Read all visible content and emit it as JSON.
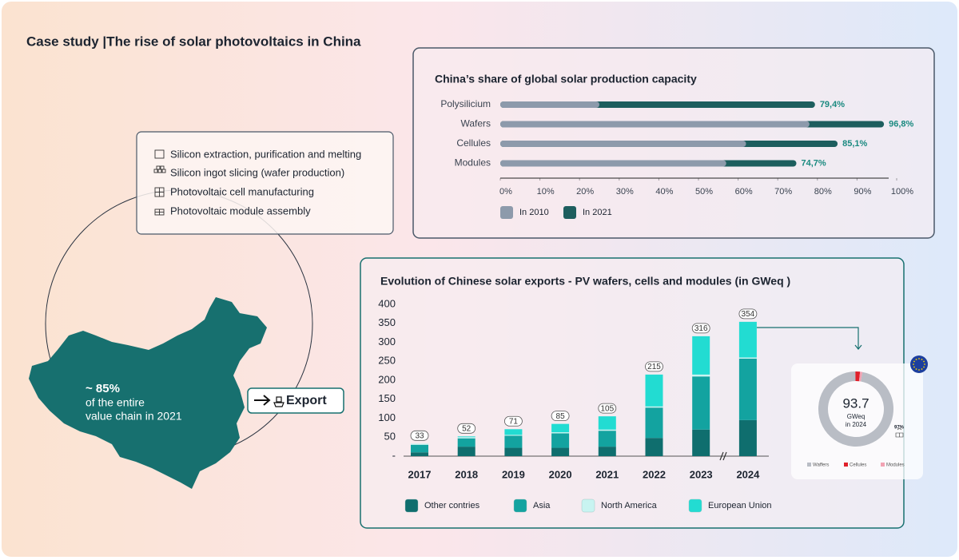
{
  "title": "Case study |The rise of solar photovoltaics in China",
  "value_chain": {
    "steps": [
      "Silicon extraction, purification and melting",
      "Silicon ingot slicing (wafer production)",
      "Photovoltaic cell manufacturing",
      "Photovoltaic module assembly"
    ],
    "share": "~ 85%",
    "share_caption": [
      "of the entire",
      "value chain in 2021"
    ]
  },
  "export_label": "Export",
  "chart_data": [
    {
      "type": "bar",
      "orientation": "horizontal",
      "overlay": true,
      "title": "China’s share of global solar production capacity",
      "categories": [
        "Polysilicium",
        "Wafers",
        "Cellules",
        "Modules"
      ],
      "series": [
        {
          "name": "In 2010",
          "color": "#8d9aab",
          "values": [
            25,
            78,
            62,
            57
          ]
        },
        {
          "name": "In 2021",
          "color": "#1d5e5e",
          "values": [
            79.4,
            96.8,
            85.1,
            74.7
          ],
          "value_labels": [
            "79,4%",
            "96,8%",
            "85,1%",
            "74,7%"
          ]
        }
      ],
      "xlim": [
        0,
        100
      ],
      "xticks": [
        {
          "value": 0,
          "label": "0%"
        },
        {
          "value": 10,
          "label": "10%"
        },
        {
          "value": 20,
          "label": "20%"
        },
        {
          "value": 30,
          "label": "30%"
        },
        {
          "value": 40,
          "label": "40%"
        },
        {
          "value": 50,
          "label": "50%"
        },
        {
          "value": 60,
          "label": "60%"
        },
        {
          "value": 70,
          "label": "70%"
        },
        {
          "value": 80,
          "label": "80%"
        },
        {
          "value": 90,
          "label": "90%"
        },
        {
          "value": 100,
          "label": "100%"
        }
      ],
      "legend": "bottom-left"
    },
    {
      "type": "bar",
      "stacked": true,
      "title": "Evolution of Chinese solar exports - PV wafers, cells and modules (in GWeq )",
      "categories": [
        "2017",
        "2018",
        "2019",
        "2020",
        "2021",
        "2022",
        "2023",
        "2024"
      ],
      "series": [
        {
          "name": "Other contries",
          "color": "#0f6e6e",
          "values": [
            10,
            25,
            22,
            22,
            25,
            48,
            70,
            95
          ]
        },
        {
          "name": "Asia",
          "color": "#13a3a0",
          "values": [
            20,
            22,
            32,
            38,
            42,
            80,
            140,
            162
          ]
        },
        {
          "name": "North America",
          "color": "#c8f4f1",
          "values": [
            3,
            3,
            2,
            3,
            3,
            3,
            5,
            3
          ]
        },
        {
          "name": "European Union",
          "color": "#22dcd2",
          "values": [
            0,
            2,
            15,
            22,
            35,
            84,
            101,
            94
          ]
        }
      ],
      "totals": [
        33,
        52,
        71,
        85,
        105,
        215,
        316,
        354
      ],
      "ylim": [
        0,
        400
      ],
      "yticks": [
        {
          "value": 0,
          "label": "-"
        },
        50,
        100,
        150,
        200,
        250,
        300,
        350,
        400
      ],
      "legend": "bottom"
    },
    {
      "type": "pie",
      "donut": true,
      "center_value": "93.7",
      "center_unit": "GWeq",
      "center_caption": "in 2024",
      "categories": [
        "Waffers",
        "Cellules",
        "Modules"
      ],
      "values": [
        97,
        2,
        1
      ],
      "value_labels": [
        "97%",
        null,
        null
      ],
      "colors": [
        "#b9bdc5",
        "#e0202a",
        "#f2a3b3"
      ],
      "legend": "bottom"
    }
  ]
}
